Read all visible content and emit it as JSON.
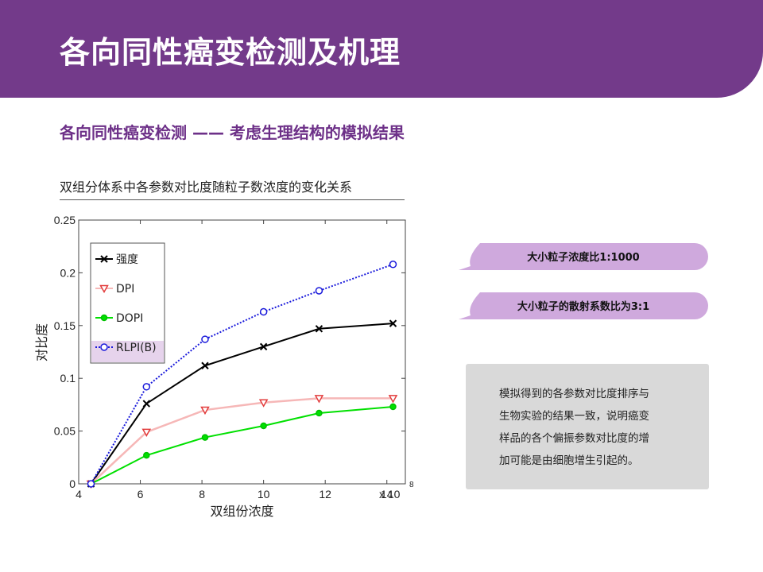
{
  "header": {
    "title": "各向同性癌变检测及机理"
  },
  "subtitle": "各向同性癌变检测 —— 考虑生理结构的模拟结果",
  "chart_caption": "双组分体系中各参数对比度随粒子数浓度的变化关系",
  "callouts": [
    {
      "text": "大小粒子浓度比1:1000"
    },
    {
      "text": "大小粒子的散射系数比为3:1"
    }
  ],
  "note": {
    "lines": [
      "模拟得到的各参数对比度排序与",
      "生物实验的结果一致，说明癌变",
      "样品的各个偏振参数对比度的增",
      "加可能是由细胞增生引起的。"
    ]
  },
  "colors": {
    "header_bg": "#733a8a",
    "subtitle": "#6d3088",
    "callout_bg": "#cfa9dd",
    "note_bg": "#d9d9d9"
  },
  "chart_data": {
    "type": "line",
    "xlabel": "双组份浓度",
    "ylabel": "对比度",
    "x_multiplier_label": "x 10",
    "x_multiplier_exp": "8",
    "xlim": [
      4,
      14.6
    ],
    "ylim": [
      0,
      0.25
    ],
    "x_ticks": [
      "4",
      "6",
      "8",
      "10",
      "12",
      "14"
    ],
    "y_ticks": [
      "0",
      "0.05",
      "0.1",
      "0.15",
      "0.2",
      "0.25"
    ],
    "grid": false,
    "legend_position": "top-left",
    "x": [
      4.4,
      6.2,
      8.1,
      10.0,
      11.8,
      14.2
    ],
    "series": [
      {
        "name": "强度",
        "color": "#000000",
        "marker": "x",
        "dash": "",
        "values": [
          0,
          0.076,
          0.112,
          0.13,
          0.147,
          0.152
        ]
      },
      {
        "name": "DPI",
        "color": "#f6b7b7",
        "marker": "triangle-down",
        "marker_color": "#e23b3b",
        "dash": "",
        "values": [
          0,
          0.049,
          0.07,
          0.077,
          0.081,
          0.081
        ]
      },
      {
        "name": "DOPI",
        "color": "#00e000",
        "marker": "circle",
        "dash": "",
        "values": [
          0,
          0.027,
          0.044,
          0.055,
          0.067,
          0.073
        ]
      },
      {
        "name": "RLPI(B)",
        "color": "#1a1adb",
        "marker": "circle-open",
        "dash": "2,2",
        "values": [
          0,
          0.092,
          0.137,
          0.163,
          0.183,
          0.208
        ]
      }
    ]
  }
}
